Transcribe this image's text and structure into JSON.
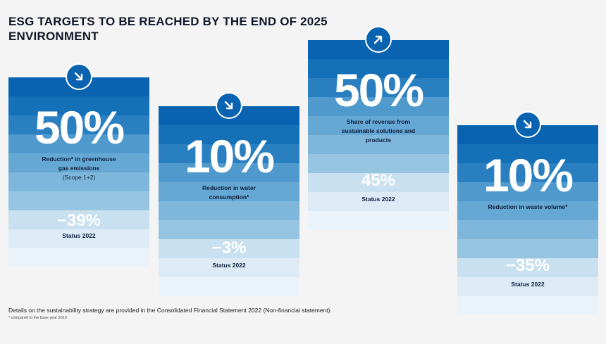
{
  "title": {
    "line1": "ESG TARGETS TO BE REACHED BY THE END OF 2025",
    "line2": "ENVIRONMENT"
  },
  "cards": [
    {
      "icon": "arrow-down-right-icon",
      "value": "50%",
      "desc_main": "Reduction* in greenhouse gas emissions",
      "desc_sub": "(Scope 1+2)",
      "status_value": "−39%",
      "status_label": "Status 2022"
    },
    {
      "icon": "arrow-down-right-icon",
      "value": "10%",
      "desc_main": "Reduction in water consumption*",
      "desc_sub": "",
      "status_value": "−3%",
      "status_label": "Status 2022"
    },
    {
      "icon": "arrow-up-right-icon",
      "value": "50%",
      "desc_main": "Share of revenue from sustainable solutions and products",
      "desc_sub": "",
      "status_value": "45%",
      "status_label": "Status 2022"
    },
    {
      "icon": "arrow-down-right-icon",
      "value": "10%",
      "desc_main": "Reduction in waste volume*",
      "desc_sub": "",
      "status_value": "−35%",
      "status_label": "Status 2022"
    }
  ],
  "footer": {
    "text": "Details on the sustainability strategy are provided in the Consolidated Financial Statement 2022 (Non-financial statement).",
    "footnote": "* compared to the base year 2019"
  },
  "colors": {
    "stripes": [
      "#0a63b0",
      "#1470b7",
      "#2a7fc0",
      "#3c8cc6",
      "#4f99cd",
      "#66a8d4",
      "#7eb7db",
      "#96c5e2",
      "#afd3e9",
      "#c8e0ef",
      "#dcebf5",
      "#eaf3f9"
    ],
    "icon_circle": "#0a63b0",
    "background": "#f4f4f4"
  }
}
